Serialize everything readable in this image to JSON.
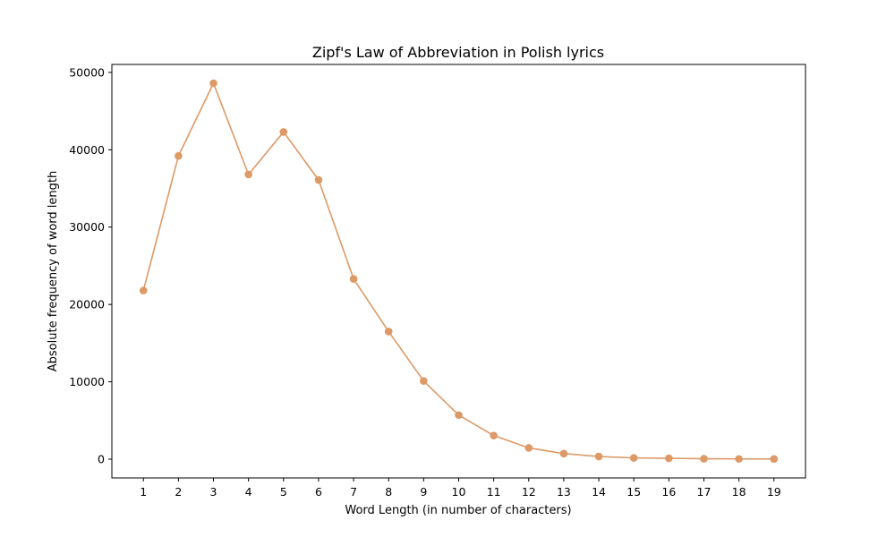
{
  "chart_data": {
    "type": "line",
    "title": "Zipf's Law of Abbreviation in Polish lyrics",
    "xlabel": "Word Length (in number of characters)",
    "ylabel": "Absolute frequency of word length",
    "x": [
      1,
      2,
      3,
      4,
      5,
      6,
      7,
      8,
      9,
      10,
      11,
      12,
      13,
      14,
      15,
      16,
      17,
      18,
      19
    ],
    "series": [
      {
        "values": [
          21800,
          39200,
          48600,
          36800,
          42300,
          36100,
          23300,
          16500,
          10100,
          5700,
          3050,
          1450,
          720,
          340,
          160,
          110,
          50,
          30,
          20
        ],
        "color": "#dd9966",
        "marker": "circle"
      }
    ],
    "xticks": [
      "1",
      "2",
      "3",
      "4",
      "5",
      "6",
      "7",
      "8",
      "9",
      "10",
      "11",
      "12",
      "13",
      "14",
      "15",
      "16",
      "17",
      "18",
      "19"
    ],
    "yticks": [
      "0",
      "10000",
      "20000",
      "30000",
      "40000",
      "50000"
    ],
    "ytick_values": [
      0,
      10000,
      20000,
      30000,
      40000,
      50000
    ],
    "xlim": [
      0.1,
      19.9
    ],
    "ylim": [
      -2430,
      51030
    ],
    "grid": false,
    "legend": "none"
  }
}
